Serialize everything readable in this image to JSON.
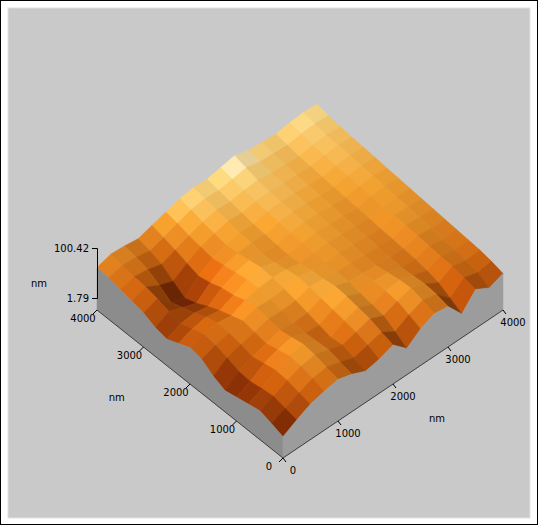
{
  "chart_data": {
    "type": "surface",
    "x_label": "nm",
    "y_label": "nm",
    "z_label": "nm",
    "xlim": [
      0,
      4000
    ],
    "xticks": [
      0,
      1000,
      2000,
      3000,
      4000
    ],
    "ylim": [
      0,
      4000
    ],
    "yticks": [
      0,
      1000,
      2000,
      3000,
      4000
    ],
    "zlim": [
      1.79,
      100.42
    ],
    "zticks": [
      1.79,
      100.42
    ],
    "x": [
      0,
      250,
      500,
      750,
      1000,
      1250,
      1500,
      1750,
      2000,
      2250,
      2500,
      2750,
      3000,
      3250,
      3500,
      3750,
      4000
    ],
    "y": [
      0,
      250,
      500,
      750,
      1000,
      1250,
      1500,
      1750,
      2000,
      2250,
      2500,
      2750,
      3000,
      3250,
      3500,
      3750,
      4000
    ],
    "z": [
      [
        20,
        35,
        48,
        55,
        60,
        52,
        40,
        45,
        55,
        30,
        50,
        62,
        58,
        25,
        55,
        40,
        50
      ],
      [
        28,
        40,
        52,
        62,
        66,
        58,
        48,
        55,
        62,
        45,
        60,
        70,
        64,
        38,
        60,
        52,
        56
      ],
      [
        35,
        45,
        58,
        68,
        72,
        64,
        55,
        62,
        70,
        58,
        68,
        76,
        66,
        50,
        64,
        58,
        60
      ],
      [
        30,
        42,
        60,
        70,
        75,
        62,
        52,
        66,
        74,
        62,
        70,
        74,
        64,
        56,
        66,
        60,
        62
      ],
      [
        25,
        38,
        55,
        64,
        70,
        60,
        58,
        70,
        78,
        66,
        72,
        70,
        62,
        60,
        68,
        62,
        64
      ],
      [
        20,
        40,
        50,
        58,
        66,
        62,
        64,
        74,
        80,
        70,
        68,
        66,
        64,
        62,
        70,
        66,
        66
      ],
      [
        30,
        48,
        56,
        62,
        70,
        68,
        70,
        78,
        76,
        72,
        70,
        68,
        66,
        64,
        72,
        70,
        68
      ],
      [
        45,
        55,
        60,
        66,
        74,
        72,
        74,
        80,
        74,
        70,
        72,
        70,
        68,
        66,
        74,
        72,
        70
      ],
      [
        50,
        58,
        62,
        58,
        70,
        76,
        78,
        76,
        70,
        72,
        74,
        72,
        70,
        68,
        72,
        74,
        72
      ],
      [
        40,
        50,
        55,
        50,
        62,
        74,
        80,
        72,
        68,
        74,
        76,
        74,
        72,
        70,
        74,
        76,
        74
      ],
      [
        30,
        42,
        45,
        40,
        58,
        70,
        76,
        70,
        70,
        76,
        78,
        76,
        74,
        72,
        76,
        78,
        76
      ],
      [
        35,
        48,
        38,
        28,
        50,
        66,
        72,
        74,
        72,
        78,
        80,
        78,
        76,
        74,
        78,
        80,
        78
      ],
      [
        45,
        55,
        30,
        20,
        45,
        62,
        70,
        76,
        74,
        80,
        82,
        80,
        78,
        76,
        80,
        82,
        80
      ],
      [
        50,
        60,
        45,
        35,
        52,
        66,
        74,
        80,
        78,
        82,
        84,
        82,
        80,
        78,
        82,
        84,
        82
      ],
      [
        55,
        62,
        58,
        50,
        60,
        70,
        78,
        84,
        82,
        86,
        88,
        84,
        82,
        80,
        84,
        86,
        84
      ],
      [
        60,
        66,
        64,
        58,
        66,
        76,
        84,
        88,
        86,
        90,
        94,
        88,
        86,
        84,
        88,
        90,
        88
      ],
      [
        62,
        70,
        68,
        64,
        72,
        80,
        88,
        92,
        90,
        95,
        100,
        92,
        90,
        88,
        92,
        94,
        92
      ]
    ]
  }
}
